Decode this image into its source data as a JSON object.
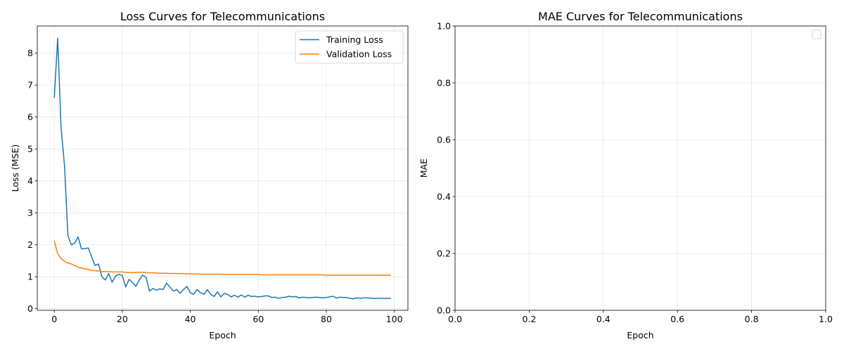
{
  "chart_data": [
    {
      "type": "line",
      "title": "Loss Curves for Telecommunications",
      "xlabel": "Epoch",
      "ylabel": "Loss (MSE)",
      "xlim": [
        -5,
        104
      ],
      "ylim": [
        -0.05,
        8.85
      ],
      "xticks": [
        0,
        20,
        40,
        60,
        80,
        100
      ],
      "yticks": [
        0,
        1,
        2,
        3,
        4,
        5,
        6,
        7,
        8
      ],
      "grid": true,
      "legend": "top-right",
      "series": [
        {
          "name": "Training Loss",
          "color": "#1f77b4",
          "x": [
            0,
            1,
            2,
            3,
            4,
            5,
            6,
            7,
            8,
            9,
            10,
            11,
            12,
            13,
            14,
            15,
            16,
            17,
            18,
            19,
            20,
            21,
            22,
            23,
            24,
            25,
            26,
            27,
            28,
            29,
            30,
            31,
            32,
            33,
            34,
            35,
            36,
            37,
            38,
            39,
            40,
            41,
            42,
            43,
            44,
            45,
            46,
            47,
            48,
            49,
            50,
            51,
            52,
            53,
            54,
            55,
            56,
            57,
            58,
            59,
            60,
            61,
            62,
            63,
            64,
            65,
            66,
            67,
            68,
            69,
            70,
            71,
            72,
            73,
            74,
            75,
            76,
            77,
            78,
            79,
            80,
            81,
            82,
            83,
            84,
            85,
            86,
            87,
            88,
            89,
            90,
            91,
            92,
            93,
            94,
            95,
            96,
            97,
            98,
            99
          ],
          "y": [
            6.6,
            8.47,
            5.65,
            4.5,
            2.3,
            2.0,
            2.05,
            2.25,
            1.87,
            1.88,
            1.9,
            1.62,
            1.35,
            1.4,
            1.0,
            0.9,
            1.1,
            0.83,
            1.02,
            1.08,
            1.04,
            0.68,
            0.92,
            0.82,
            0.7,
            0.9,
            1.05,
            0.97,
            0.55,
            0.63,
            0.58,
            0.62,
            0.6,
            0.8,
            0.68,
            0.55,
            0.6,
            0.48,
            0.6,
            0.7,
            0.5,
            0.45,
            0.6,
            0.5,
            0.45,
            0.6,
            0.45,
            0.38,
            0.53,
            0.37,
            0.48,
            0.45,
            0.37,
            0.42,
            0.36,
            0.43,
            0.36,
            0.42,
            0.38,
            0.39,
            0.37,
            0.38,
            0.4,
            0.4,
            0.35,
            0.36,
            0.32,
            0.35,
            0.36,
            0.39,
            0.37,
            0.38,
            0.34,
            0.36,
            0.35,
            0.34,
            0.35,
            0.36,
            0.35,
            0.34,
            0.35,
            0.37,
            0.39,
            0.33,
            0.36,
            0.35,
            0.35,
            0.32,
            0.31,
            0.34,
            0.32,
            0.34,
            0.34,
            0.33,
            0.32,
            0.32,
            0.33,
            0.32,
            0.32,
            0.33
          ]
        },
        {
          "name": "Validation Loss",
          "color": "#ff7f0e",
          "x": [
            0,
            1,
            2,
            3,
            4,
            5,
            6,
            7,
            8,
            9,
            10,
            11,
            12,
            13,
            14,
            15,
            16,
            17,
            18,
            19,
            20,
            21,
            22,
            23,
            24,
            25,
            26,
            27,
            28,
            29,
            30,
            31,
            32,
            33,
            34,
            35,
            36,
            37,
            38,
            39,
            40,
            41,
            42,
            43,
            44,
            45,
            46,
            47,
            48,
            49,
            50,
            51,
            52,
            53,
            54,
            55,
            56,
            57,
            58,
            59,
            60,
            61,
            62,
            63,
            64,
            65,
            66,
            67,
            68,
            69,
            70,
            71,
            72,
            73,
            74,
            75,
            76,
            77,
            78,
            79,
            80,
            81,
            82,
            83,
            84,
            85,
            86,
            87,
            88,
            89,
            90,
            91,
            92,
            93,
            94,
            95,
            96,
            97,
            98,
            99
          ],
          "y": [
            2.12,
            1.72,
            1.57,
            1.48,
            1.43,
            1.4,
            1.35,
            1.3,
            1.27,
            1.25,
            1.23,
            1.2,
            1.19,
            1.18,
            1.16,
            1.16,
            1.16,
            1.15,
            1.15,
            1.15,
            1.15,
            1.14,
            1.13,
            1.13,
            1.13,
            1.14,
            1.14,
            1.13,
            1.12,
            1.12,
            1.12,
            1.11,
            1.11,
            1.11,
            1.1,
            1.1,
            1.1,
            1.1,
            1.1,
            1.09,
            1.09,
            1.09,
            1.09,
            1.08,
            1.08,
            1.08,
            1.08,
            1.08,
            1.08,
            1.08,
            1.07,
            1.07,
            1.07,
            1.07,
            1.07,
            1.07,
            1.07,
            1.07,
            1.07,
            1.07,
            1.07,
            1.06,
            1.06,
            1.06,
            1.06,
            1.06,
            1.06,
            1.06,
            1.06,
            1.06,
            1.06,
            1.06,
            1.06,
            1.06,
            1.06,
            1.06,
            1.06,
            1.06,
            1.06,
            1.06,
            1.05,
            1.05,
            1.05,
            1.05,
            1.05,
            1.05,
            1.05,
            1.05,
            1.05,
            1.05,
            1.05,
            1.05,
            1.05,
            1.05,
            1.05,
            1.05,
            1.05,
            1.05,
            1.05,
            1.05
          ]
        }
      ]
    },
    {
      "type": "line",
      "title": "MAE Curves for Telecommunications",
      "xlabel": "Epoch",
      "ylabel": "MAE",
      "xlim": [
        0,
        1
      ],
      "ylim": [
        0,
        1
      ],
      "xticks": [
        0.0,
        0.2,
        0.4,
        0.6,
        0.8,
        1.0
      ],
      "yticks": [
        0.0,
        0.2,
        0.4,
        0.6,
        0.8,
        1.0
      ],
      "tick_labels": [
        "0.0",
        "0.2",
        "0.4",
        "0.6",
        "0.8",
        "1.0"
      ],
      "grid": true,
      "legend": "top-right",
      "series": []
    }
  ]
}
